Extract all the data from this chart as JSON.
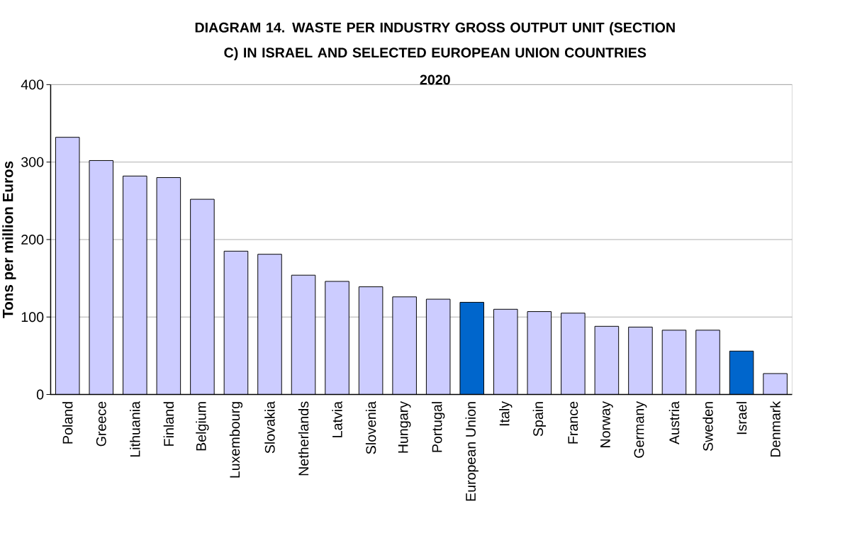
{
  "chart_data": {
    "type": "bar",
    "title": "DIAGRAM 14. WASTE PER INDUSTRY GROSS OUTPUT UNIT (SECTION C) IN ISRAEL AND SELECTED EUROPEAN UNION COUNTRIES",
    "subtitle": "2020",
    "ylabel": "Tons per million Euros",
    "categories": [
      "Poland",
      "Greece",
      "Lithuania",
      "Finland",
      "Belgium",
      "Luxembourg",
      "Slovakia",
      "Netherlands",
      "Latvia",
      "Slovenia",
      "Hungary",
      "Portugal",
      "European Union",
      "Italy",
      "Spain",
      "France",
      "Norway",
      "Germany",
      "Austria",
      "Sweden",
      "Israel",
      "Denmark"
    ],
    "values": [
      332,
      302,
      282,
      280,
      252,
      185,
      181,
      154,
      146,
      139,
      126,
      123,
      119,
      110,
      107,
      105,
      88,
      87,
      83,
      83,
      56,
      27
    ],
    "colors": [
      "#ccccff",
      "#ccccff",
      "#ccccff",
      "#ccccff",
      "#ccccff",
      "#ccccff",
      "#ccccff",
      "#ccccff",
      "#ccccff",
      "#ccccff",
      "#ccccff",
      "#ccccff",
      "#0066cc",
      "#ccccff",
      "#ccccff",
      "#ccccff",
      "#ccccff",
      "#ccccff",
      "#ccccff",
      "#ccccff",
      "#0066cc",
      "#ccccff"
    ],
    "ylim": [
      0,
      400
    ],
    "yticks": [
      0,
      100,
      200,
      300,
      400
    ],
    "grid": "y"
  }
}
